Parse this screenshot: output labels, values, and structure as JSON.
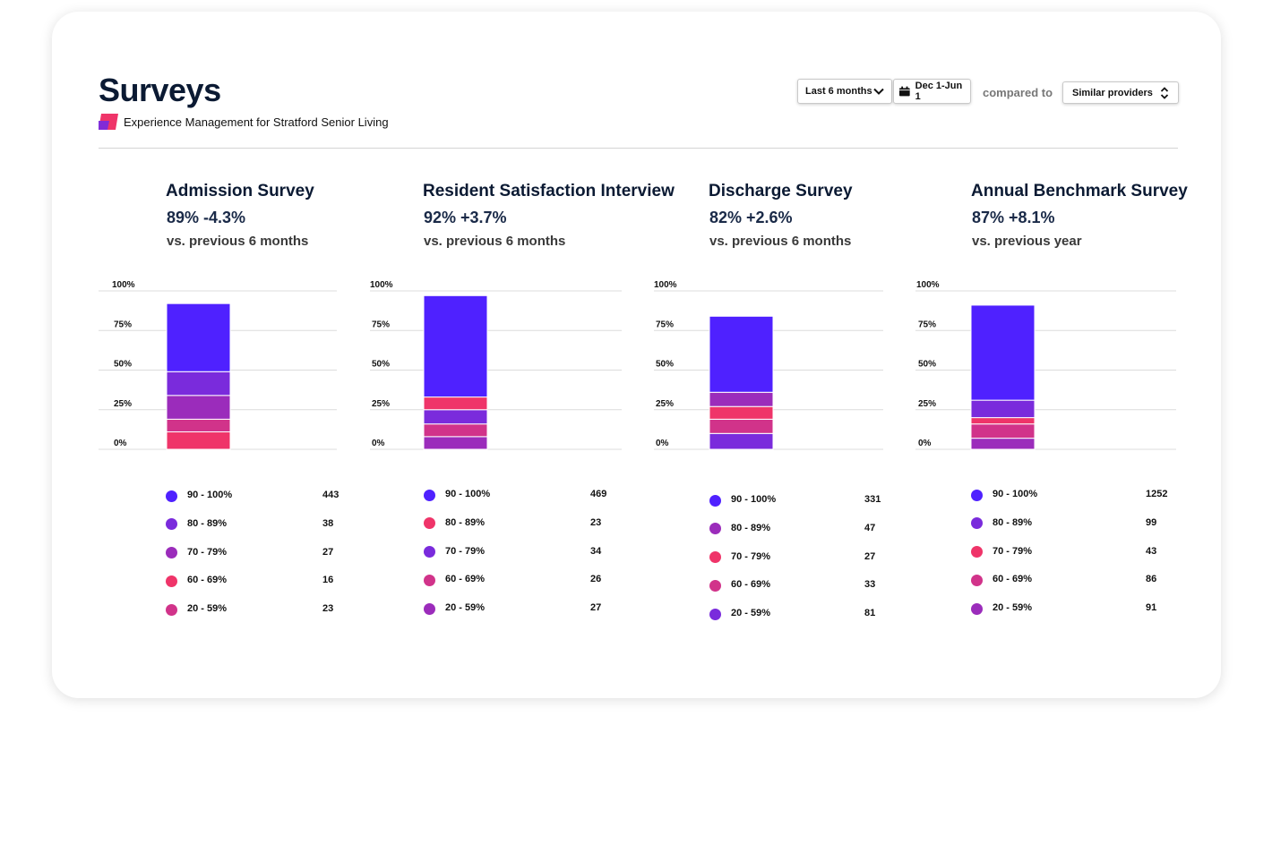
{
  "header": {
    "title": "Surveys",
    "subtitle": "Experience Management for Stratford Senior Living",
    "period_label": "Last 6 months",
    "range_label": "Dec 1-Jun 1",
    "compared_label": "compared to",
    "compare_value": "Similar providers"
  },
  "colors": {
    "bucket_90_100": "#4f21ff",
    "bucket_80_89_a": "#7a2bdc",
    "bucket_70_79": "#9b2cbb",
    "bucket_60_69": "#ef3469",
    "bucket_20_59": "#d1338a"
  },
  "y_ticks": [
    "100%",
    "75%",
    "50%",
    "25%",
    "0%"
  ],
  "panels": [
    {
      "title": "Admission Survey",
      "score": "89% -4.3%",
      "comparison": "vs. previous 6 months",
      "legend": [
        {
          "label": "90 - 100%",
          "count": "443",
          "color": "#4f21ff"
        },
        {
          "label": "80 - 89%",
          "count": "38",
          "color": "#7a2bdc"
        },
        {
          "label": "70 - 79%",
          "count": "27",
          "color": "#9b2cbb"
        },
        {
          "label": "60 - 69%",
          "count": "16",
          "color": "#ef3469"
        },
        {
          "label": "20 - 59%",
          "count": "23",
          "color": "#d1338a"
        }
      ],
      "stack_order": [
        "60 - 69%",
        "20 - 59%",
        "70 - 79%",
        "80 - 89%",
        "90 - 100%"
      ]
    },
    {
      "title": "Resident Satisfaction Interview",
      "score": "92% +3.7%",
      "comparison": "vs. previous 6 months",
      "legend": [
        {
          "label": "90 - 100%",
          "count": "469",
          "color": "#4f21ff"
        },
        {
          "label": "80 - 89%",
          "count": "23",
          "color": "#ef3469"
        },
        {
          "label": "70 - 79%",
          "count": "34",
          "color": "#7a2bdc"
        },
        {
          "label": "60 - 69%",
          "count": "26",
          "color": "#d1338a"
        },
        {
          "label": "20 - 59%",
          "count": "27",
          "color": "#9b2cbb"
        }
      ],
      "stack_order": [
        "20 - 59%",
        "60 - 69%",
        "70 - 79%",
        "80 - 89%",
        "90 - 100%"
      ]
    },
    {
      "title": "Discharge Survey",
      "score": "82% +2.6%",
      "comparison": "vs. previous 6 months",
      "legend": [
        {
          "label": "90 - 100%",
          "count": "331",
          "color": "#4f21ff"
        },
        {
          "label": "80 - 89%",
          "count": "47",
          "color": "#9b2cbb"
        },
        {
          "label": "70 - 79%",
          "count": "27",
          "color": "#ef3469"
        },
        {
          "label": "60 - 69%",
          "count": "33",
          "color": "#d1338a"
        },
        {
          "label": "20 - 59%",
          "count": "81",
          "color": "#7a2bdc"
        }
      ],
      "stack_order": [
        "20 - 59%",
        "60 - 69%",
        "70 - 79%",
        "80 - 89%",
        "90 - 100%"
      ]
    },
    {
      "title": "Annual Benchmark Survey",
      "score": "87% +8.1%",
      "comparison": "vs. previous year",
      "legend": [
        {
          "label": "90 - 100%",
          "count": "1252",
          "color": "#4f21ff"
        },
        {
          "label": "80 - 89%",
          "count": "99",
          "color": "#7a2bdc"
        },
        {
          "label": "70 - 79%",
          "count": "43",
          "color": "#ef3469"
        },
        {
          "label": "60 - 69%",
          "count": "86",
          "color": "#d1338a"
        },
        {
          "label": "20 - 59%",
          "count": "91",
          "color": "#9b2cbb"
        }
      ],
      "stack_order": [
        "20 - 59%",
        "60 - 69%",
        "70 - 79%",
        "80 - 89%",
        "90 - 100%"
      ]
    }
  ],
  "chart_data": [
    {
      "type": "bar",
      "stacked": true,
      "categories": [
        ""
      ],
      "ylim": [
        0,
        100
      ],
      "y_ticks": [
        "100%",
        "75%",
        "50%",
        "25%",
        "0%"
      ],
      "total_pct": 92,
      "series": [
        {
          "name": "60 - 69%",
          "values": [
            11
          ]
        },
        {
          "name": "20 - 59%",
          "values": [
            8
          ]
        },
        {
          "name": "70 - 79%",
          "values": [
            15
          ]
        },
        {
          "name": "80 - 89%",
          "values": [
            15
          ]
        },
        {
          "name": "90 - 100%",
          "values": [
            43
          ]
        }
      ]
    },
    {
      "type": "bar",
      "stacked": true,
      "categories": [
        ""
      ],
      "ylim": [
        0,
        100
      ],
      "y_ticks": [
        "100%",
        "75%",
        "50%",
        "25%",
        "0%"
      ],
      "total_pct": 97,
      "series": [
        {
          "name": "20 - 59%",
          "values": [
            8
          ]
        },
        {
          "name": "60 - 69%",
          "values": [
            8
          ]
        },
        {
          "name": "70 - 79%",
          "values": [
            9
          ]
        },
        {
          "name": "80 - 89%",
          "values": [
            8
          ]
        },
        {
          "name": "90 - 100%",
          "values": [
            64
          ]
        }
      ]
    },
    {
      "type": "bar",
      "stacked": true,
      "categories": [
        ""
      ],
      "ylim": [
        0,
        100
      ],
      "y_ticks": [
        "100%",
        "75%",
        "50%",
        "25%",
        "0%"
      ],
      "total_pct": 84,
      "series": [
        {
          "name": "20 - 59%",
          "values": [
            10
          ]
        },
        {
          "name": "60 - 69%",
          "values": [
            9
          ]
        },
        {
          "name": "70 - 79%",
          "values": [
            8
          ]
        },
        {
          "name": "80 - 89%",
          "values": [
            9
          ]
        },
        {
          "name": "90 - 100%",
          "values": [
            48
          ]
        }
      ]
    },
    {
      "type": "bar",
      "stacked": true,
      "categories": [
        ""
      ],
      "ylim": [
        0,
        100
      ],
      "y_ticks": [
        "100%",
        "75%",
        "50%",
        "25%",
        "0%"
      ],
      "total_pct": 91,
      "series": [
        {
          "name": "20 - 59%",
          "values": [
            7
          ]
        },
        {
          "name": "60 - 69%",
          "values": [
            9
          ]
        },
        {
          "name": "70 - 79%",
          "values": [
            4
          ]
        },
        {
          "name": "80 - 89%",
          "values": [
            11
          ]
        },
        {
          "name": "90 - 100%",
          "values": [
            60
          ]
        }
      ]
    }
  ]
}
